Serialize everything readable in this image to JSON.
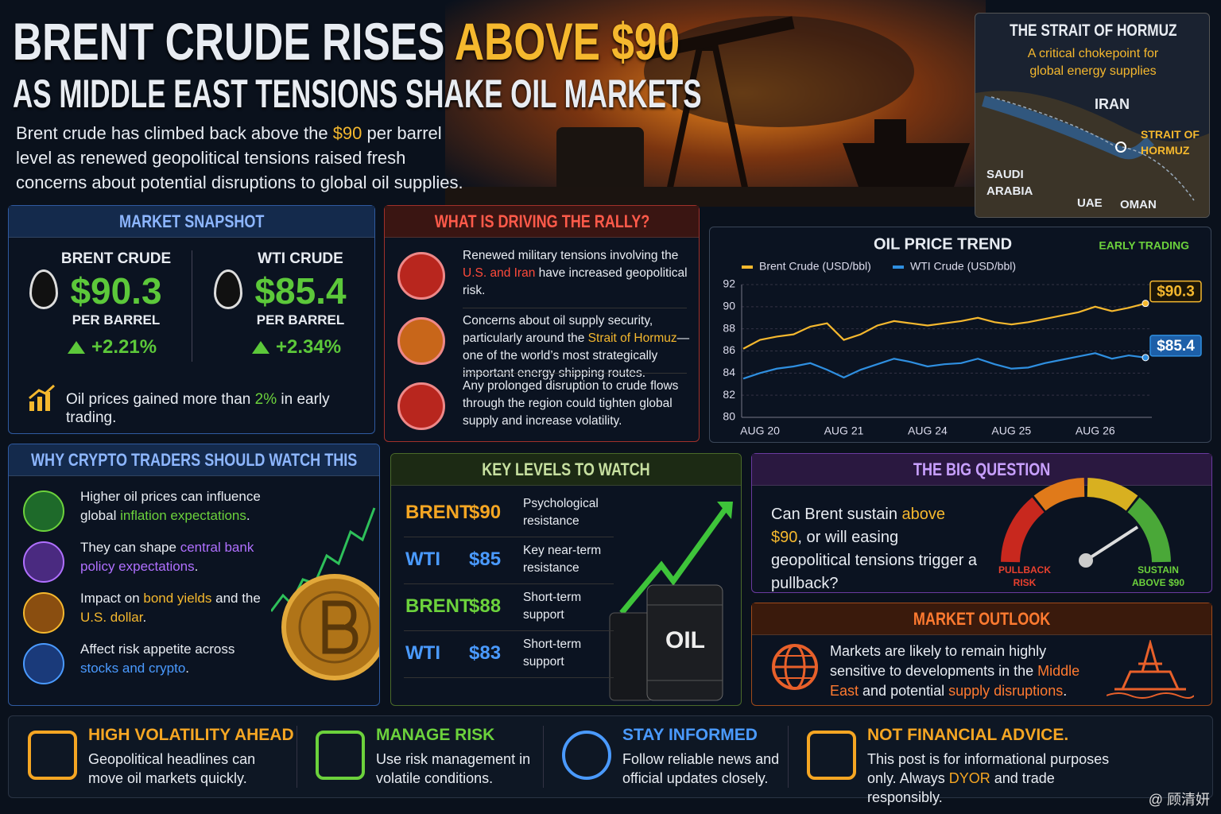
{
  "header": {
    "title_main": "BRENT CRUDE RISES",
    "title_highlight": "ABOVE $90",
    "title_line2": "AS MIDDLE EAST TENSIONS SHAKE OIL MARKETS",
    "intro": [
      "Brent crude has climbed back above the ",
      "$90",
      " per barrel level as renewed geopolitical tensions raised fresh concerns about potential disruptions to global oil supplies."
    ]
  },
  "hormuz_map": {
    "title": "THE STRAIT OF HORMUZ",
    "subtitle": "A critical chokepoint for global energy supplies",
    "labels": [
      "IRAN",
      "STRAIT OF HORMUZ",
      "SAUDI ARABIA",
      "UAE",
      "OMAN"
    ]
  },
  "market_snapshot": {
    "title": "MARKET SNAPSHOT",
    "items": [
      {
        "name": "BRENT CRUDE",
        "price": "$90.3",
        "unit": "PER BARREL",
        "change": "+2.21%"
      },
      {
        "name": "WTI CRUDE",
        "price": "$85.4",
        "unit": "PER BARREL",
        "change": "+2.34%"
      }
    ],
    "note": [
      "Oil prices gained more than ",
      "2%",
      " in early trading."
    ]
  },
  "drivers": {
    "title": "WHAT IS DRIVING THE RALLY?",
    "items": [
      [
        "Renewed military tensions involving the ",
        "U.S. and Iran",
        " have increased geopolitical risk."
      ],
      [
        "Concerns about oil supply security, particularly around the ",
        "Strait of Hormuz",
        "—one of the world’s most strategically important energy shipping routes."
      ],
      [
        "Any prolonged disruption to crude flows through the region could tighten global supply and increase volatility."
      ]
    ]
  },
  "chart_data": {
    "type": "line",
    "title": "OIL PRICE TREND",
    "subtitle": "EARLY TRADING",
    "categories": [
      null,
      "AUG 20",
      null,
      null,
      null,
      null,
      "AUG 21",
      null,
      null,
      null,
      null,
      "AUG 24",
      null,
      null,
      null,
      null,
      "AUG 25",
      null,
      null,
      null,
      null,
      "AUG 26",
      null,
      null,
      null
    ],
    "series": [
      {
        "name": "Brent Crude (USD/bbl)",
        "color": "#f5b82e",
        "values": [
          86.2,
          87.0,
          87.3,
          87.5,
          88.2,
          88.5,
          87.0,
          87.5,
          88.3,
          88.7,
          88.5,
          88.3,
          88.5,
          88.7,
          89.0,
          88.6,
          88.4,
          88.6,
          88.9,
          89.2,
          89.5,
          90.0,
          89.6,
          89.9,
          90.3
        ],
        "value_labels": [
          null,
          null,
          null,
          null,
          null,
          null,
          null,
          null,
          null,
          null,
          null,
          null,
          null,
          null,
          null,
          null,
          null,
          null,
          null,
          null,
          null,
          null,
          null,
          null,
          "$90.3"
        ]
      },
      {
        "name": "WTI Crude (USD/bbl)",
        "color": "#2f8fe0",
        "values": [
          83.5,
          84.0,
          84.4,
          84.6,
          84.9,
          84.3,
          83.6,
          84.3,
          84.8,
          85.3,
          85.0,
          84.6,
          84.8,
          84.9,
          85.3,
          84.8,
          84.4,
          84.5,
          84.9,
          85.2,
          85.5,
          85.8,
          85.3,
          85.6,
          85.4
        ],
        "value_labels": [
          null,
          null,
          null,
          null,
          null,
          null,
          null,
          null,
          null,
          null,
          null,
          null,
          null,
          null,
          null,
          null,
          null,
          null,
          null,
          null,
          null,
          null,
          null,
          null,
          "$85.4"
        ]
      }
    ],
    "ylim": [
      80,
      92
    ],
    "yticks": [
      80,
      82,
      84,
      86,
      88,
      90,
      92
    ],
    "grid": true
  },
  "crypto": {
    "title": "WHY CRYPTO TRADERS SHOULD WATCH THIS",
    "items": [
      [
        "Higher oil prices can influence global ",
        "inflation expectations",
        "."
      ],
      [
        "They can shape ",
        "central bank policy expectations",
        "."
      ],
      [
        "Impact on ",
        "bond yields",
        " and the ",
        "U.S. dollar",
        "."
      ],
      [
        "Affect risk appetite across ",
        "stocks and crypto",
        "."
      ]
    ]
  },
  "key_levels": {
    "title": "KEY LEVELS TO WATCH",
    "rows": [
      [
        "BRENT",
        "$90",
        "Psychological resistance"
      ],
      [
        "WTI",
        "$85",
        "Key near-term resistance"
      ],
      [
        "BRENT",
        "$88",
        "Short-term support"
      ],
      [
        "WTI",
        "$83",
        "Short-term support"
      ]
    ],
    "barrel_label": "OIL"
  },
  "big_question": {
    "title": "THE BIG QUESTION",
    "text": [
      "Can Brent sustain ",
      "above $90",
      ", or will easing geopolitical tensions trigger a pullback?"
    ],
    "gauge_left": "PULLBACK RISK",
    "gauge_right": "SUSTAIN ABOVE $90"
  },
  "outlook": {
    "title": "MARKET OUTLOOK",
    "text": [
      "Markets are likely to remain highly sensitive to developments in the ",
      "Middle East",
      " and potential ",
      "supply disruptions",
      "."
    ]
  },
  "footer": {
    "items": [
      {
        "title": "HIGH VOLATILITY AHEAD",
        "text": [
          "Geopolitical headlines can move oil markets quickly."
        ]
      },
      {
        "title": "MANAGE RISK",
        "text": [
          "Use risk management in volatile conditions."
        ]
      },
      {
        "title": "STAY INFORMED",
        "text": [
          "Follow reliable news and official updates closely."
        ]
      },
      {
        "title": "NOT FINANCIAL ADVICE.",
        "text": [
          "This post is for informational purposes only. Always ",
          "DYOR",
          " and trade responsibly."
        ]
      }
    ],
    "watermark": "@ 顾清妍"
  }
}
